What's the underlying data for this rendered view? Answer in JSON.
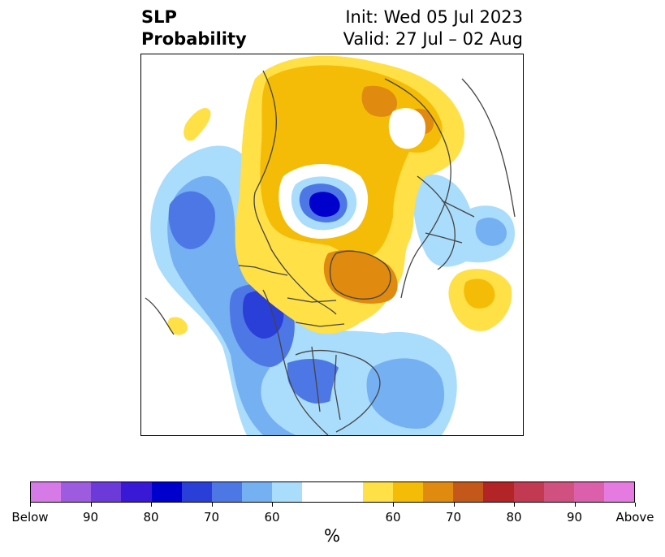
{
  "title": {
    "left_line1": "SLP",
    "left_line2": "Probability",
    "right_line1": "Init: Wed 05 Jul 2023",
    "right_line2": "Valid: 27 Jul – 02 Aug"
  },
  "colorbar": {
    "unit": "%",
    "colors": [
      "#d67ae8",
      "#9d5ce0",
      "#6c3ad8",
      "#3918d6",
      "#0000cc",
      "#2a3fd8",
      "#4e77e6",
      "#75b0f2",
      "#aadcfb",
      "#ffffff",
      "#ffffff",
      "#ffe046",
      "#f4bc07",
      "#e08a10",
      "#c4571a",
      "#b22426",
      "#c23a52",
      "#d0507f",
      "#db5fab",
      "#e57ae0"
    ],
    "tick_labels": [
      "Below",
      "90",
      "80",
      "70",
      "60",
      "60",
      "70",
      "80",
      "90",
      "Above"
    ]
  },
  "map": {
    "colors": {
      "very_light_blue": "#aadcfb",
      "light_blue": "#75b0f2",
      "mid_blue": "#4e77e6",
      "blue": "#2a3fd8",
      "deep_blue": "#0000cc",
      "yellow": "#ffe046",
      "gold": "#f4bc07",
      "orange": "#e08a10",
      "coast": "#444444"
    }
  }
}
